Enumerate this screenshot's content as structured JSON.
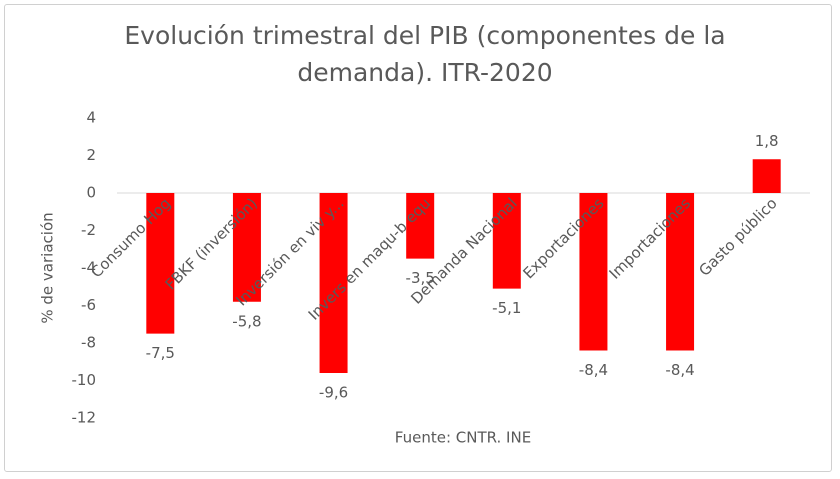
{
  "chart_data": {
    "type": "bar",
    "title": "Evolución trimestral del PIB (componentes de la demanda). ITR-2020",
    "y_label": "% de variación",
    "footer": "Fuente: CNTR. INE",
    "categories": [
      "Consumo Hog",
      "FBKF (inversión)",
      "Inversión en viv y...",
      "Invers en maqu-b equ",
      "Demanda Nacional",
      "Exportaciones",
      "Importaciones",
      "Gasto público"
    ],
    "values": [
      -7.5,
      -5.8,
      -9.6,
      -3.5,
      -5.1,
      -8.4,
      -8.4,
      1.8
    ],
    "value_labels": [
      "-7,5",
      "-5,8",
      "-9,6",
      "-3,5",
      "-5,1",
      "-8,4",
      "-8,4",
      "1,8"
    ],
    "color": "#ff0000",
    "ylim": [
      -12,
      4
    ],
    "yticks": [
      4,
      2,
      0,
      -2,
      -4,
      -6,
      -8,
      -10,
      -12
    ],
    "grid": false
  }
}
